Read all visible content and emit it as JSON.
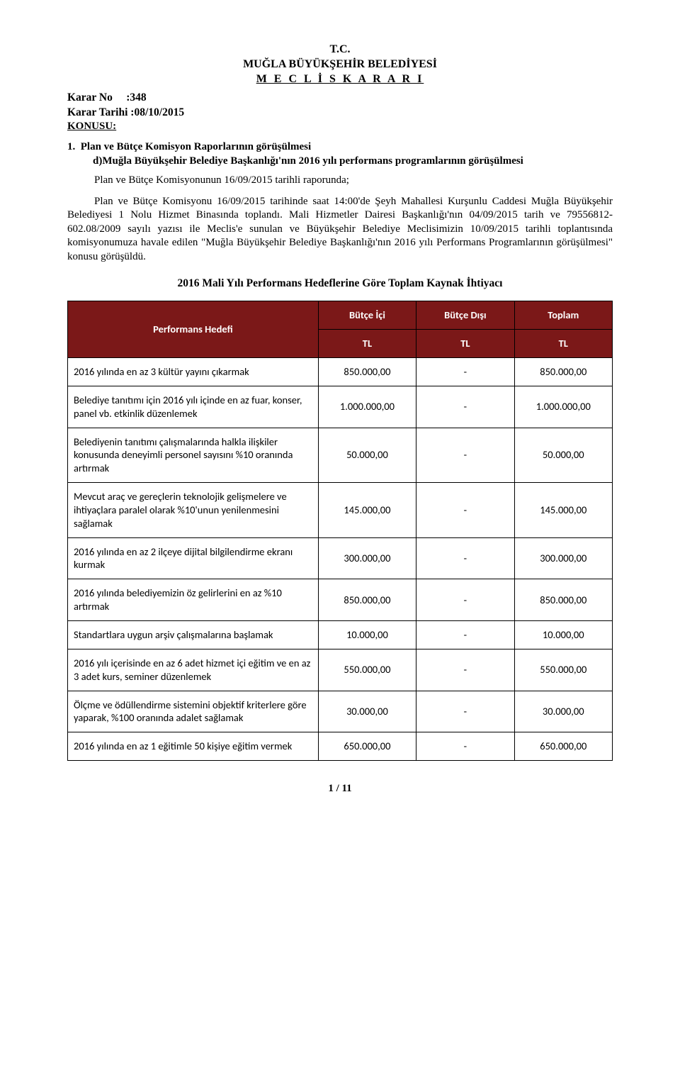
{
  "header": {
    "tc": "T.C.",
    "org": "MUĞLA BÜYÜKŞEHİR BELEDİYESİ",
    "meclis": "M E C L İ S   K A R A R I"
  },
  "karar": {
    "no_label": "Karar No",
    "no_sep": ":",
    "no_value": "348",
    "tarih_label": "Karar Tarihi",
    "tarih_sep": ":",
    "tarih_value": "08/10/2015",
    "konusu_label": "KONUSU:"
  },
  "item_text": "1. Plan ve Bütçe Komisyon Raporlarının görüşülmesi\nd)Muğla Büyükşehir Belediye Başkanlığı'nın 2016 yılı performans programlarının görüşülmesi",
  "para1": "Plan ve Bütçe Komisyonunun 16/09/2015 tarihli raporunda;",
  "para2": "Plan ve Bütçe Komisyonu 16/09/2015 tarihinde saat 14:00'de Şeyh Mahallesi Kurşunlu Caddesi Muğla Büyükşehir Belediyesi 1 Nolu Hizmet Binasında toplandı. Mali Hizmetler Dairesi Başkanlığı'nın 04/09/2015 tarih ve 79556812-602.08/2009 sayılı yazısı ile Meclis'e sunulan ve Büyükşehir Belediye Meclisimizin 10/09/2015 tarihli toplantısında komisyonumuza havale edilen \"Muğla Büyükşehir Belediye Başkanlığı'nın 2016 yılı Performans Programlarının görüşülmesi\" konusu görüşüldü.",
  "subtitle": "2016 Mali Yılı Performans Hedeflerine Göre Toplam Kaynak İhtiyacı",
  "table": {
    "header_bg": "#7b1818",
    "header_fg": "#ffffff",
    "col_hedef": "Performans Hedefi",
    "col_ici": "Bütçe İçi",
    "col_disi": "Bütçe Dışı",
    "col_toplam": "Toplam",
    "tl": "TL",
    "rows": [
      {
        "hedef": "2016 yılında en az 3 kültür yayını çıkarmak",
        "ici": "850.000,00",
        "disi": "-",
        "toplam": "850.000,00"
      },
      {
        "hedef": "Belediye tanıtımı için 2016 yılı içinde en az fuar, konser, panel vb. etkinlik düzenlemek",
        "ici": "1.000.000,00",
        "disi": "-",
        "toplam": "1.000.000,00"
      },
      {
        "hedef": "Belediyenin tanıtımı çalışmalarında halkla ilişkiler konusunda deneyimli personel sayısını %10 oranında artırmak",
        "ici": "50.000,00",
        "disi": "-",
        "toplam": "50.000,00"
      },
      {
        "hedef": "Mevcut araç ve gereçlerin teknolojik gelişmelere ve ihtiyaçlara paralel olarak %10'unun yenilenmesini sağlamak",
        "ici": "145.000,00",
        "disi": "-",
        "toplam": "145.000,00"
      },
      {
        "hedef": "2016 yılında en az 2 ilçeye dijital bilgilendirme ekranı kurmak",
        "ici": "300.000,00",
        "disi": "-",
        "toplam": "300.000,00"
      },
      {
        "hedef": "2016 yılında belediyemizin öz gelirlerini en az %10 artırmak",
        "ici": "850.000,00",
        "disi": "-",
        "toplam": "850.000,00"
      },
      {
        "hedef": "Standartlara uygun arşiv çalışmalarına başlamak",
        "ici": "10.000,00",
        "disi": "-",
        "toplam": "10.000,00"
      },
      {
        "hedef": "2016 yılı içerisinde en az 6 adet hizmet içi eğitim ve en az 3 adet kurs, seminer düzenlemek",
        "ici": "550.000,00",
        "disi": "-",
        "toplam": "550.000,00"
      },
      {
        "hedef": "Ölçme ve ödüllendirme sistemini objektif kriterlere göre yaparak, %100 oranında adalet sağlamak",
        "ici": "30.000,00",
        "disi": "-",
        "toplam": "30.000,00"
      },
      {
        "hedef": "2016 yılında en az 1 eğitimle 50 kişiye eğitim vermek",
        "ici": "650.000,00",
        "disi": "-",
        "toplam": "650.000,00"
      }
    ]
  },
  "page_num": "1 / 11"
}
